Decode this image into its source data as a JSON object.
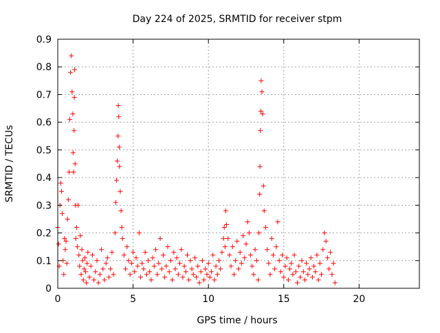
{
  "chart_data": {
    "type": "scatter",
    "title": "Day 224 of 2025, SRMTID for receiver stpm",
    "xlabel": "GPS time / hours",
    "ylabel": "SRMTID / TECUs",
    "xlim": [
      0,
      24
    ],
    "ylim": [
      0,
      0.9
    ],
    "xticks": [
      0,
      5,
      10,
      15,
      20
    ],
    "yticks": [
      0,
      0.1,
      0.2,
      0.3,
      0.4,
      0.5,
      0.6,
      0.7,
      0.8,
      0.9
    ],
    "xtick_labels": [
      "0",
      "5",
      "10",
      "15",
      "20"
    ],
    "ytick_labels": [
      "0",
      "0.1",
      "0.2",
      "0.3",
      "0.4",
      "0.5",
      "0.6",
      "0.7",
      "0.8",
      "0.9"
    ],
    "grid": true,
    "marker": "+",
    "color": "#ff0000",
    "series": [
      {
        "x": [
          0.0,
          0.05,
          0.1,
          0.15,
          0.2,
          0.25,
          0.3,
          0.35,
          0.4,
          0.45,
          0.5,
          0.55,
          0.6,
          0.65,
          0.7,
          0.75,
          0.8,
          0.85,
          0.9,
          0.95,
          1.0,
          1.02,
          1.05,
          1.08,
          1.1,
          1.12,
          1.15,
          1.18,
          1.2,
          1.25,
          1.3,
          1.35,
          1.4,
          1.45,
          1.5,
          1.55,
          1.6,
          1.65,
          1.7,
          1.75,
          1.8,
          1.85,
          1.9,
          1.95,
          2.0,
          2.1,
          2.2,
          2.3,
          2.4,
          2.5,
          2.6,
          2.7,
          2.8,
          2.9,
          3.0,
          3.1,
          3.2,
          3.3,
          3.4,
          3.5,
          3.6,
          3.7,
          3.8,
          3.85,
          3.9,
          3.95,
          4.0,
          4.02,
          4.05,
          4.08,
          4.1,
          4.15,
          4.2,
          4.25,
          4.3,
          4.4,
          4.5,
          4.6,
          4.7,
          4.8,
          4.9,
          5.0,
          5.1,
          5.2,
          5.3,
          5.4,
          5.5,
          5.6,
          5.7,
          5.8,
          5.9,
          6.0,
          6.1,
          6.2,
          6.3,
          6.4,
          6.5,
          6.6,
          6.7,
          6.8,
          6.9,
          7.0,
          7.1,
          7.2,
          7.3,
          7.4,
          7.5,
          7.6,
          7.7,
          7.8,
          7.9,
          8.0,
          8.1,
          8.2,
          8.3,
          8.4,
          8.5,
          8.6,
          8.7,
          8.8,
          8.9,
          9.0,
          9.1,
          9.2,
          9.3,
          9.4,
          9.5,
          9.6,
          9.7,
          9.8,
          9.9,
          10.0,
          10.1,
          10.2,
          10.3,
          10.4,
          10.5,
          10.6,
          10.7,
          10.8,
          10.9,
          11.0,
          11.05,
          11.1,
          11.15,
          11.2,
          11.3,
          11.4,
          11.5,
          11.6,
          11.7,
          11.8,
          11.9,
          12.0,
          12.1,
          12.2,
          12.3,
          12.4,
          12.5,
          12.6,
          12.7,
          12.8,
          12.9,
          13.0,
          13.1,
          13.2,
          13.3,
          13.35,
          13.4,
          13.42,
          13.45,
          13.48,
          13.5,
          13.55,
          13.6,
          13.65,
          13.7,
          13.8,
          13.9,
          14.0,
          14.1,
          14.2,
          14.3,
          14.4,
          14.5,
          14.6,
          14.7,
          14.8,
          14.9,
          15.0,
          15.1,
          15.2,
          15.3,
          15.4,
          15.5,
          15.6,
          15.7,
          15.8,
          15.9,
          16.0,
          16.1,
          16.2,
          16.3,
          16.4,
          16.5,
          16.6,
          16.7,
          16.8,
          16.9,
          17.0,
          17.1,
          17.2,
          17.3,
          17.4,
          17.5,
          17.6,
          17.7,
          17.8,
          17.9,
          18.0,
          18.1,
          18.2,
          18.3,
          18.4
        ],
        "y": [
          0.22,
          0.16,
          0.08,
          0.3,
          0.38,
          0.35,
          0.27,
          0.1,
          0.05,
          0.18,
          0.14,
          0.17,
          0.09,
          0.25,
          0.32,
          0.42,
          0.61,
          0.78,
          0.84,
          0.71,
          0.63,
          0.49,
          0.42,
          0.57,
          0.69,
          0.79,
          0.45,
          0.3,
          0.18,
          0.22,
          0.15,
          0.3,
          0.12,
          0.08,
          0.19,
          0.05,
          0.14,
          0.1,
          0.03,
          0.07,
          0.11,
          0.06,
          0.02,
          0.09,
          0.13,
          0.04,
          0.08,
          0.12,
          0.03,
          0.06,
          0.1,
          0.02,
          0.05,
          0.14,
          0.07,
          0.03,
          0.09,
          0.11,
          0.04,
          0.07,
          0.13,
          0.05,
          0.2,
          0.31,
          0.39,
          0.46,
          0.55,
          0.66,
          0.62,
          0.51,
          0.44,
          0.35,
          0.28,
          0.22,
          0.18,
          0.12,
          0.07,
          0.15,
          0.1,
          0.05,
          0.09,
          0.13,
          0.06,
          0.11,
          0.08,
          0.2,
          0.04,
          0.09,
          0.07,
          0.13,
          0.05,
          0.1,
          0.06,
          0.03,
          0.11,
          0.08,
          0.14,
          0.05,
          0.09,
          0.18,
          0.07,
          0.12,
          0.04,
          0.08,
          0.15,
          0.06,
          0.1,
          0.03,
          0.13,
          0.07,
          0.11,
          0.05,
          0.09,
          0.14,
          0.04,
          0.08,
          0.06,
          0.12,
          0.03,
          0.1,
          0.07,
          0.05,
          0.11,
          0.04,
          0.08,
          0.02,
          0.06,
          0.1,
          0.03,
          0.07,
          0.05,
          0.09,
          0.04,
          0.06,
          0.12,
          0.03,
          0.08,
          0.05,
          0.1,
          0.07,
          0.13,
          0.18,
          0.22,
          0.15,
          0.28,
          0.23,
          0.18,
          0.12,
          0.08,
          0.15,
          0.05,
          0.1,
          0.17,
          0.07,
          0.13,
          0.09,
          0.19,
          0.11,
          0.16,
          0.24,
          0.2,
          0.12,
          0.08,
          0.05,
          0.14,
          0.1,
          0.03,
          0.2,
          0.34,
          0.44,
          0.57,
          0.64,
          0.75,
          0.71,
          0.63,
          0.37,
          0.28,
          0.22,
          0.14,
          0.09,
          0.05,
          0.18,
          0.12,
          0.07,
          0.15,
          0.24,
          0.1,
          0.06,
          0.12,
          0.04,
          0.08,
          0.11,
          0.03,
          0.07,
          0.09,
          0.05,
          0.12,
          0.06,
          0.02,
          0.08,
          0.04,
          0.1,
          0.06,
          0.03,
          0.09,
          0.05,
          0.07,
          0.11,
          0.04,
          0.08,
          0.06,
          0.12,
          0.03,
          0.09,
          0.05,
          0.14,
          0.2,
          0.17,
          0.11,
          0.07,
          0.13,
          0.05,
          0.09,
          0.02
        ]
      }
    ]
  }
}
